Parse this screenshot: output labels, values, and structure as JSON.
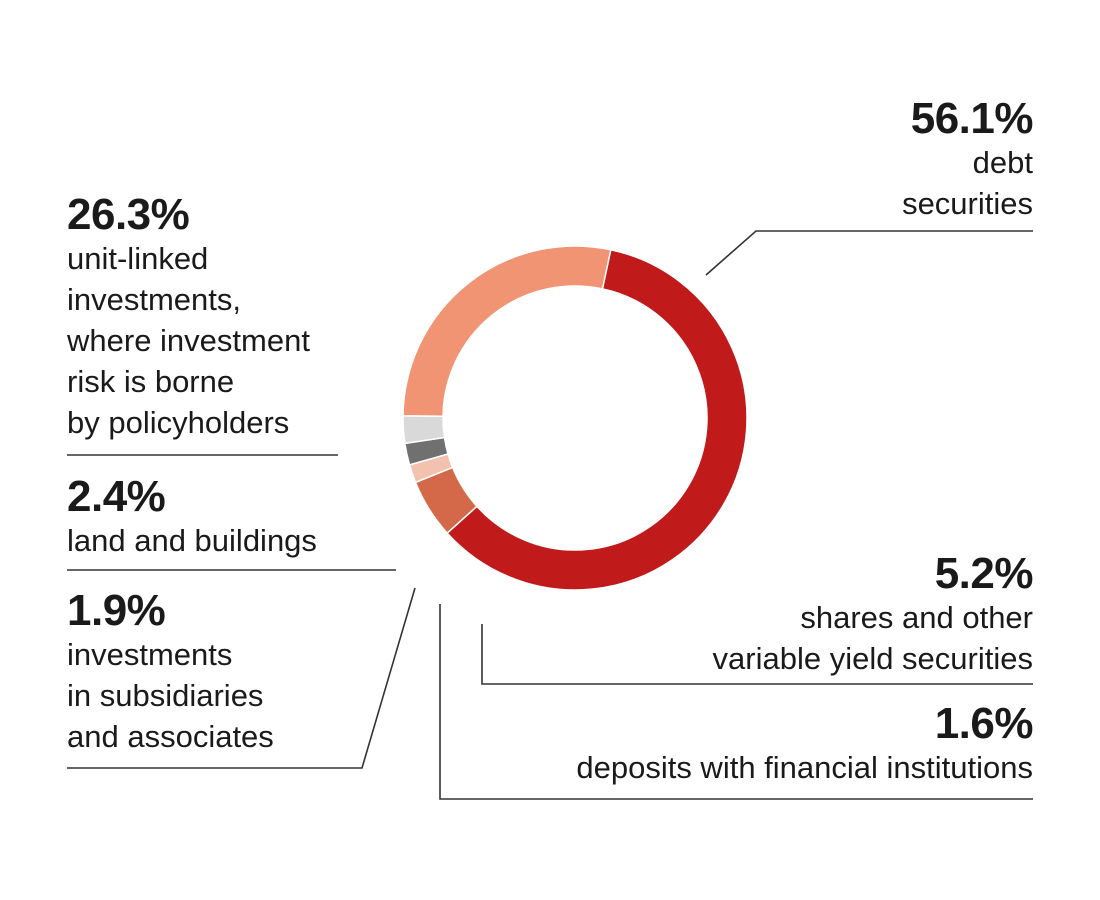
{
  "chart_data": {
    "type": "pie",
    "style": "donut",
    "slices": [
      {
        "value": 56.1,
        "value_label": "56.1%",
        "label": "debt\nsecurities",
        "color": "#c01a1a"
      },
      {
        "value": 5.2,
        "value_label": "5.2%",
        "label": "shares and other \nvariable yield securities",
        "color": "#d4694a"
      },
      {
        "value": 1.6,
        "value_label": "1.6%",
        "label": "deposits with financial institutions",
        "color": "#f2c2ae"
      },
      {
        "value": 1.9,
        "value_label": "1.9%",
        "label": "investments\nin subsidiaries\nand associates",
        "color": "#707070"
      },
      {
        "value": 2.4,
        "value_label": "2.4%",
        "label": "land and buildings",
        "color": "#d9d9d9"
      },
      {
        "value": 26.3,
        "value_label": "26.3%",
        "label": "unit-linked\ninvestments,\nwhere investment\nrisk is borne\nby policyholders",
        "color": "#f09473"
      }
    ]
  }
}
